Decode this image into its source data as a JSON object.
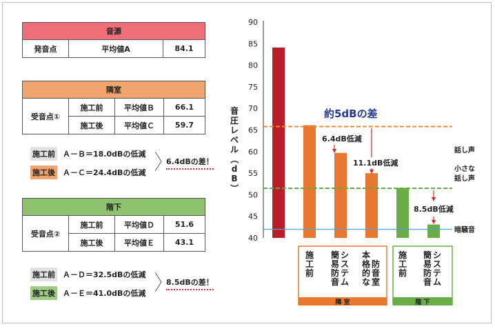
{
  "colors": {
    "red_header": "#f06e78",
    "orange_header": "#f0a46e",
    "green_header": "#8ec26f",
    "bar_red": "#b81e27",
    "bar_orange": "#e8782f",
    "bar_green": "#6aad46",
    "line_orange": "#ee8836",
    "line_green": "#5aae3c",
    "line_blue": "#4f9fd8",
    "arrow_red": "#d7242b",
    "annotation_blue": "#243a8f"
  },
  "source_table": {
    "title": "音源",
    "row": [
      "発音点",
      "平均値A",
      "84.1"
    ]
  },
  "next_room_table": {
    "title": "隣室",
    "point": "受音点①",
    "rows": [
      [
        "施工前",
        "平均値Ｂ",
        "66.1"
      ],
      [
        "施工後",
        "平均値Ｃ",
        "59.7"
      ]
    ]
  },
  "next_room_notes": {
    "before_tag": "施工前",
    "before_text": "Ａ－Ｂ＝18.0dBの低減",
    "after_tag": "施工後",
    "after_text": "Ａ－Ｃ＝24.4dBの低減",
    "diff": "6.4dBの差！"
  },
  "downstairs_table": {
    "title": "階下",
    "point": "受音点②",
    "rows": [
      [
        "施工前",
        "平均値Ｄ",
        "51.6"
      ],
      [
        "施工後",
        "平均値Ｅ",
        "43.1"
      ]
    ]
  },
  "downstairs_notes": {
    "before_tag": "施工前",
    "before_text": "Ａ－Ｄ＝32.5dBの低減",
    "after_tag": "施工後",
    "after_text": "Ａ－Ｅ＝41.0dBの低減",
    "diff": "8.5dBの差！"
  },
  "chart_data": {
    "type": "bar",
    "ylabel": "音圧レベル（dB）",
    "ylim": [
      40,
      90
    ],
    "yticks": [
      40,
      45,
      50,
      55,
      60,
      65,
      70,
      75,
      80,
      85,
      90
    ],
    "values": [
      84.1,
      66.1,
      59.7,
      55.0,
      51.6,
      43.1
    ],
    "bar_colors": [
      "#b81e27",
      "#e8782f",
      "#e8782f",
      "#e8782f",
      "#6aad46",
      "#6aad46"
    ],
    "categories": [
      "",
      "施工前",
      "簡易防音システム",
      "本格的な防音室",
      "施工前",
      "簡易防音システム"
    ],
    "category_lines": [
      [],
      [
        "施",
        "工",
        "前"
      ],
      [
        "簡",
        "易",
        "防",
        "音"
      ],
      [
        "本",
        "格",
        "的",
        "な"
      ],
      [
        "施",
        "工",
        "前"
      ],
      [
        "簡",
        "易",
        "防",
        "音"
      ]
    ],
    "category_lines2": [
      [],
      [],
      [
        "シ",
        "ス",
        "テ",
        "ム"
      ],
      [
        "防",
        "音",
        "室"
      ],
      [],
      [
        "シ",
        "ス",
        "テ",
        "ム"
      ]
    ],
    "groups": [
      {
        "name": "隣 室",
        "color": "#e8782f"
      },
      {
        "name": "階 下",
        "color": "#6aad46"
      }
    ],
    "reference_lines": [
      {
        "value": 65.8,
        "label": "話し声",
        "style": "dashed",
        "color": "#ee8836"
      },
      {
        "value": 51.5,
        "label": "小さな\n話し声",
        "style": "dashed",
        "color": "#5aae3c"
      },
      {
        "value": 42.0,
        "label": "暗騒音",
        "style": "solid",
        "color": "#4f9fd8"
      }
    ],
    "annotations": {
      "main": "約5dBの差",
      "a1": "6.4dB低減",
      "a2": "11.1dB低減",
      "a3": "8.5dB低減"
    }
  }
}
